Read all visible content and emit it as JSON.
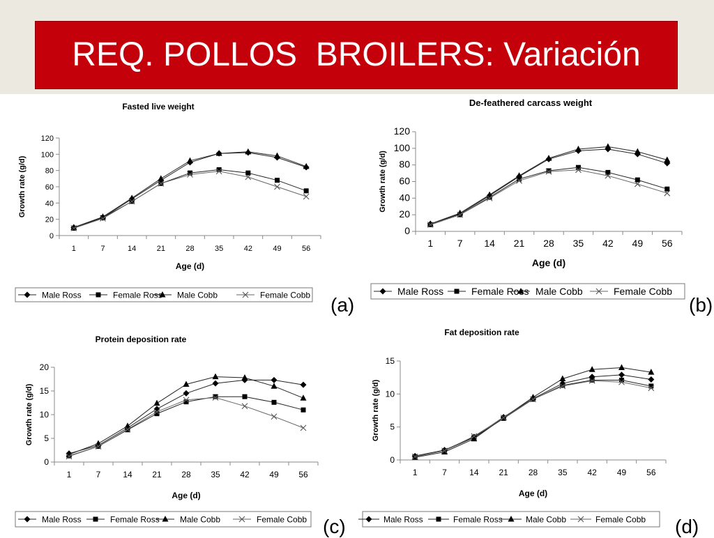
{
  "slide": {
    "title": "REQ. POLLOS  BROILERS: Variación",
    "colors": {
      "banner": "#c4000b",
      "top_background": "#ece9e1",
      "title_text": "#ffffff"
    }
  },
  "panel_letters": [
    "(a)",
    "(b)",
    "(c)",
    "(d)"
  ],
  "legend_labels": [
    "Male Ross",
    "Female Ross",
    "Male Cobb",
    "Female Cobb"
  ],
  "chart_data": [
    {
      "type": "line",
      "title": "Fasted live weight",
      "xlabel": "Age (d)",
      "ylabel": "Growth rate (g/d)",
      "categories": [
        "1",
        "7",
        "14",
        "21",
        "28",
        "35",
        "42",
        "49",
        "56"
      ],
      "ylim": [
        0,
        120
      ],
      "yticks": [
        0,
        20,
        40,
        60,
        80,
        100,
        120
      ],
      "grid": false,
      "legend": "bottom",
      "series": [
        {
          "name": "Male Ross",
          "marker": "diamond",
          "values": [
            10,
            22,
            45,
            68,
            90,
            101,
            102,
            96,
            84
          ]
        },
        {
          "name": "Female Ross",
          "marker": "square",
          "values": [
            9,
            22,
            42,
            64,
            77,
            81,
            77,
            68,
            55
          ]
        },
        {
          "name": "Male Cobb",
          "marker": "triangle",
          "values": [
            10,
            23,
            46,
            70,
            92,
            101,
            103,
            98,
            85
          ]
        },
        {
          "name": "Female Cobb",
          "marker": "x",
          "values": [
            9,
            21,
            42,
            64,
            75,
            79,
            72,
            60,
            48
          ]
        }
      ]
    },
    {
      "type": "line",
      "title": "De-feathered carcass weight",
      "xlabel": "Age (d)",
      "ylabel": "Growth rate (g/d)",
      "categories": [
        "1",
        "7",
        "14",
        "21",
        "28",
        "35",
        "42",
        "49",
        "56"
      ],
      "ylim": [
        0,
        120
      ],
      "yticks": [
        0,
        20,
        40,
        60,
        80,
        100,
        120
      ],
      "grid": false,
      "legend": "bottom",
      "series": [
        {
          "name": "Male Ross",
          "marker": "diamond",
          "values": [
            9,
            21,
            43,
            66,
            87,
            97,
            99,
            93,
            82
          ]
        },
        {
          "name": "Female Ross",
          "marker": "square",
          "values": [
            8,
            20,
            41,
            63,
            73,
            77,
            71,
            62,
            51
          ]
        },
        {
          "name": "Male Cobb",
          "marker": "triangle",
          "values": [
            9,
            22,
            44,
            67,
            88,
            99,
            102,
            96,
            86
          ]
        },
        {
          "name": "Female Cobb",
          "marker": "x",
          "values": [
            8,
            20,
            40,
            61,
            72,
            74,
            67,
            57,
            46
          ]
        }
      ]
    },
    {
      "type": "line",
      "title": "Protein deposition rate",
      "xlabel": "Age (d)",
      "ylabel": "Growth rate (g/d)",
      "categories": [
        "1",
        "7",
        "14",
        "21",
        "28",
        "35",
        "42",
        "49",
        "56"
      ],
      "ylim": [
        0,
        20
      ],
      "yticks": [
        0,
        5,
        10,
        15,
        20
      ],
      "grid": false,
      "legend": "bottom",
      "series": [
        {
          "name": "Male Ross",
          "marker": "diamond",
          "values": [
            1.8,
            3.5,
            7.2,
            11.2,
            14.5,
            16.6,
            17.3,
            17.3,
            16.3
          ]
        },
        {
          "name": "Female Ross",
          "marker": "square",
          "values": [
            1.3,
            3.3,
            6.8,
            10.2,
            12.7,
            13.8,
            13.8,
            12.6,
            11.0
          ]
        },
        {
          "name": "Male Cobb",
          "marker": "triangle",
          "values": [
            1.6,
            3.9,
            7.6,
            12.4,
            16.4,
            18.0,
            17.8,
            16.0,
            13.5
          ]
        },
        {
          "name": "Female Cobb",
          "marker": "x",
          "values": [
            1.2,
            3.3,
            6.9,
            10.6,
            13.1,
            13.6,
            11.8,
            9.6,
            7.2
          ]
        }
      ]
    },
    {
      "type": "line",
      "title": "Fat deposition rate",
      "xlabel": "Age (d)",
      "ylabel": "Growth rate (g/d)",
      "categories": [
        "1",
        "7",
        "14",
        "21",
        "28",
        "35",
        "42",
        "49",
        "56"
      ],
      "ylim": [
        0,
        15
      ],
      "yticks": [
        0,
        5,
        10,
        15
      ],
      "grid": false,
      "legend": "bottom",
      "series": [
        {
          "name": "Male Ross",
          "marker": "diamond",
          "values": [
            0.6,
            1.5,
            3.5,
            6.5,
            9.3,
            11.6,
            12.6,
            12.9,
            12.2
          ]
        },
        {
          "name": "Female Ross",
          "marker": "square",
          "values": [
            0.5,
            1.4,
            3.4,
            6.3,
            9.2,
            11.3,
            12.1,
            12.1,
            11.2
          ]
        },
        {
          "name": "Male Cobb",
          "marker": "triangle",
          "values": [
            0.4,
            1.2,
            3.2,
            6.4,
            9.5,
            12.3,
            13.7,
            14.0,
            13.3
          ]
        },
        {
          "name": "Female Cobb",
          "marker": "x",
          "values": [
            0.5,
            1.4,
            3.6,
            6.4,
            9.2,
            11.2,
            12.0,
            11.8,
            10.9
          ]
        }
      ]
    }
  ]
}
